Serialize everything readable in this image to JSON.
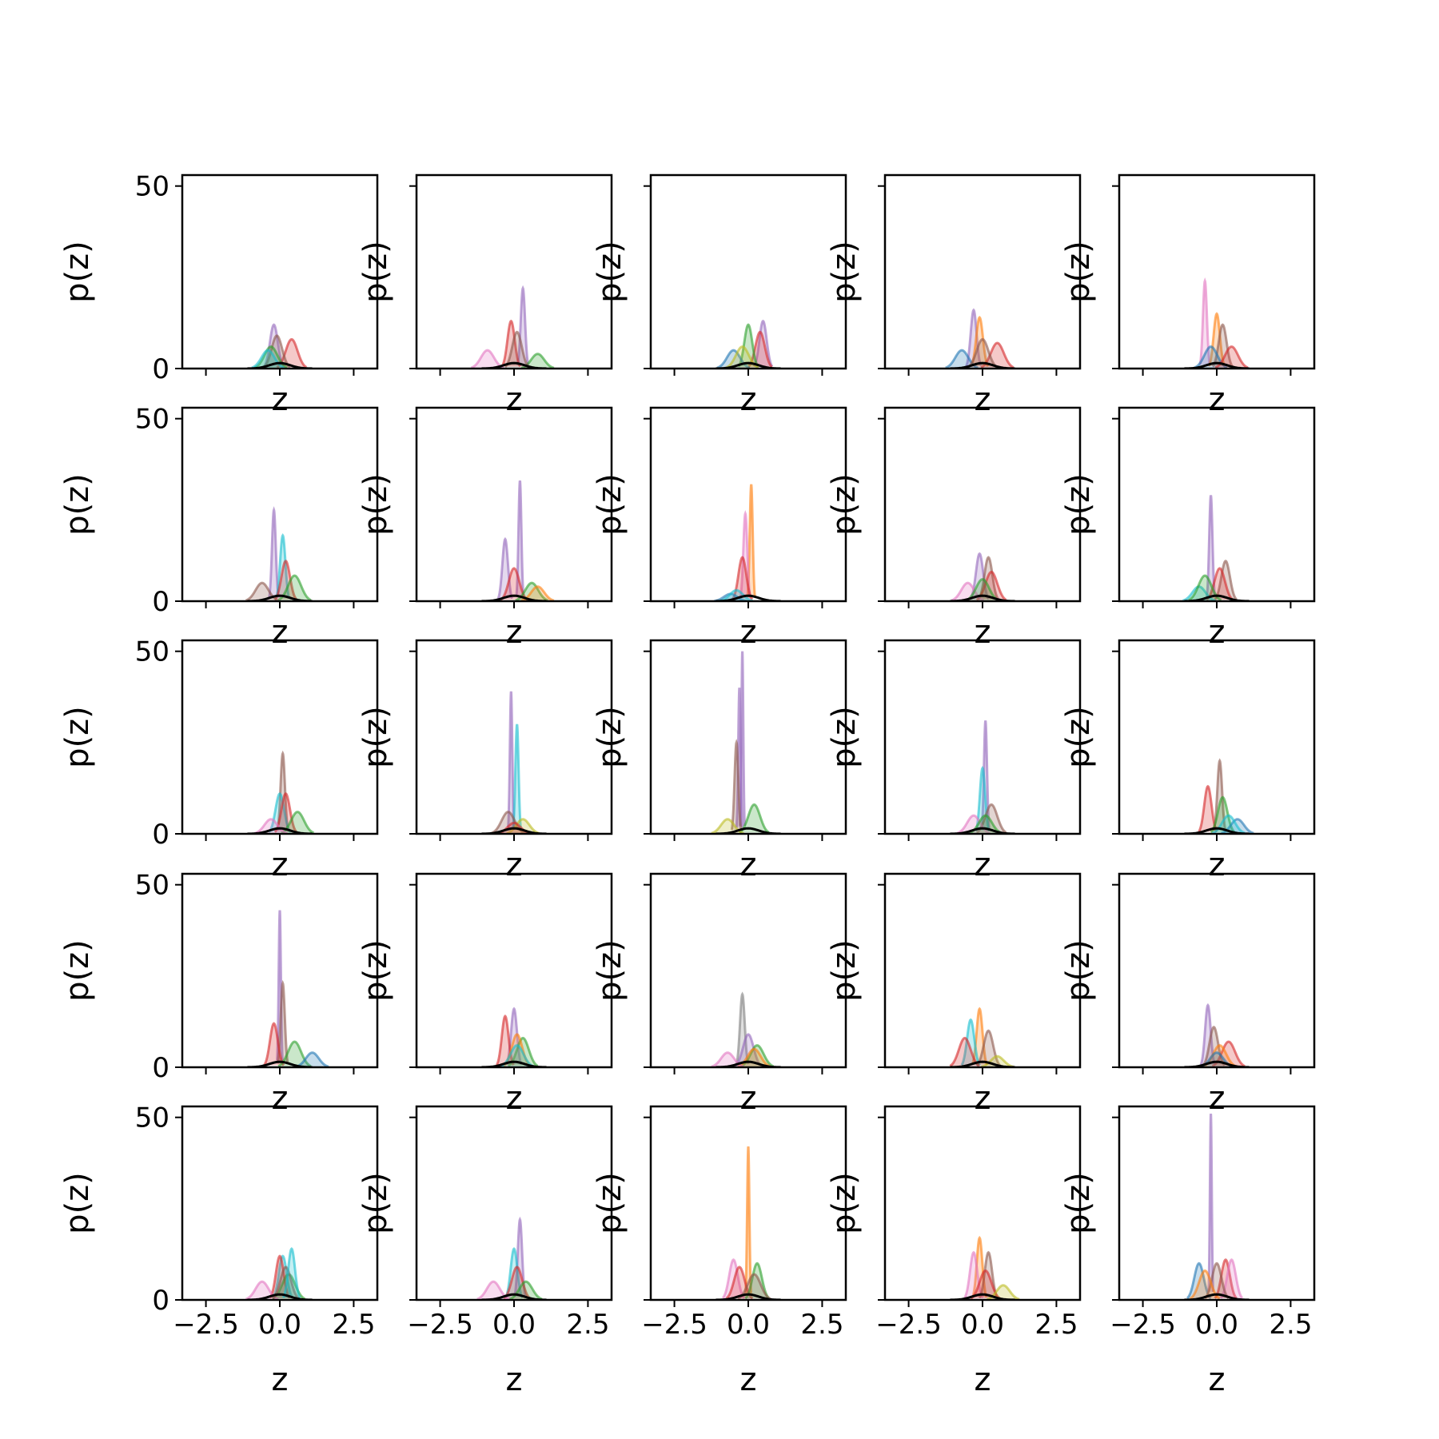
{
  "colors": [
    "#1f77b4",
    "#ff7f0e",
    "#2ca02c",
    "#d62728",
    "#9467bd",
    "#8c564b",
    "#e377c2",
    "#7f7f7f",
    "#bcbd22",
    "#17becf"
  ],
  "chart_data": {
    "type": "line",
    "layout": {
      "rows": 5,
      "cols": 5
    },
    "xlabel": "z",
    "ylabel": "p(z)",
    "xlim": [
      -3.3,
      3.3
    ],
    "ylim": [
      0,
      53
    ],
    "xticks": [
      -2.5,
      0.0,
      2.5
    ],
    "xtick_labels": [
      "−2.5",
      "0.0",
      "2.5"
    ],
    "yticks": [
      0,
      50
    ],
    "ytick_labels": [
      "0",
      "50"
    ],
    "show_xtick_labels": "bottom row only",
    "show_ytick_labels": "left column only",
    "reference_curve": {
      "color": "#000000",
      "support": [
        -1.1,
        1.1
      ],
      "peak": 1.5
    },
    "panels": [
      {
        "peaks": [
          {
            "c": 4,
            "z": -0.2,
            "h": 12
          },
          {
            "c": 3,
            "z": 0.4,
            "h": 8
          },
          {
            "c": 5,
            "z": -0.1,
            "h": 9
          },
          {
            "c": 2,
            "z": -0.3,
            "h": 6
          },
          {
            "c": 9,
            "z": -0.4,
            "h": 5
          }
        ]
      },
      {
        "peaks": [
          {
            "c": 4,
            "z": 0.3,
            "h": 22
          },
          {
            "c": 3,
            "z": -0.1,
            "h": 13
          },
          {
            "c": 6,
            "z": -0.9,
            "h": 5
          },
          {
            "c": 2,
            "z": 0.8,
            "h": 4
          },
          {
            "c": 5,
            "z": 0.1,
            "h": 10
          }
        ]
      },
      {
        "peaks": [
          {
            "c": 4,
            "z": 0.5,
            "h": 13
          },
          {
            "c": 3,
            "z": 0.4,
            "h": 10
          },
          {
            "c": 2,
            "z": 0.0,
            "h": 12
          },
          {
            "c": 0,
            "z": -0.5,
            "h": 5
          },
          {
            "c": 8,
            "z": -0.2,
            "h": 6
          }
        ]
      },
      {
        "peaks": [
          {
            "c": 4,
            "z": -0.3,
            "h": 16
          },
          {
            "c": 1,
            "z": -0.1,
            "h": 14
          },
          {
            "c": 3,
            "z": 0.5,
            "h": 7
          },
          {
            "c": 0,
            "z": -0.7,
            "h": 5
          },
          {
            "c": 5,
            "z": 0.0,
            "h": 8
          }
        ]
      },
      {
        "peaks": [
          {
            "c": 6,
            "z": -0.4,
            "h": 24
          },
          {
            "c": 1,
            "z": 0.0,
            "h": 15
          },
          {
            "c": 5,
            "z": 0.2,
            "h": 12
          },
          {
            "c": 0,
            "z": -0.2,
            "h": 6
          },
          {
            "c": 3,
            "z": 0.5,
            "h": 6
          }
        ]
      },
      {
        "peaks": [
          {
            "c": 4,
            "z": -0.2,
            "h": 25
          },
          {
            "c": 9,
            "z": 0.1,
            "h": 18
          },
          {
            "c": 3,
            "z": 0.2,
            "h": 11
          },
          {
            "c": 2,
            "z": 0.5,
            "h": 7
          },
          {
            "c": 5,
            "z": -0.6,
            "h": 5
          }
        ]
      },
      {
        "peaks": [
          {
            "c": 4,
            "z": 0.2,
            "h": 33
          },
          {
            "c": 4,
            "z": -0.3,
            "h": 17
          },
          {
            "c": 3,
            "z": 0.0,
            "h": 9
          },
          {
            "c": 2,
            "z": 0.6,
            "h": 5
          },
          {
            "c": 1,
            "z": 0.8,
            "h": 4
          }
        ]
      },
      {
        "peaks": [
          {
            "c": 1,
            "z": 0.1,
            "h": 32
          },
          {
            "c": 6,
            "z": -0.1,
            "h": 24
          },
          {
            "c": 3,
            "z": -0.2,
            "h": 12
          },
          {
            "c": 0,
            "z": -0.6,
            "h": 2
          },
          {
            "c": 9,
            "z": -0.4,
            "h": 3
          }
        ]
      },
      {
        "peaks": [
          {
            "c": 4,
            "z": -0.1,
            "h": 13
          },
          {
            "c": 5,
            "z": 0.2,
            "h": 12
          },
          {
            "c": 3,
            "z": 0.3,
            "h": 8
          },
          {
            "c": 6,
            "z": -0.5,
            "h": 5
          },
          {
            "c": 2,
            "z": 0.0,
            "h": 6
          }
        ]
      },
      {
        "peaks": [
          {
            "c": 4,
            "z": -0.2,
            "h": 29
          },
          {
            "c": 5,
            "z": 0.3,
            "h": 11
          },
          {
            "c": 3,
            "z": 0.1,
            "h": 9
          },
          {
            "c": 9,
            "z": -0.6,
            "h": 4
          },
          {
            "c": 2,
            "z": -0.4,
            "h": 7
          }
        ]
      },
      {
        "peaks": [
          {
            "c": 5,
            "z": 0.1,
            "h": 22
          },
          {
            "c": 9,
            "z": 0.0,
            "h": 11
          },
          {
            "c": 3,
            "z": 0.2,
            "h": 11
          },
          {
            "c": 2,
            "z": 0.6,
            "h": 6
          },
          {
            "c": 6,
            "z": -0.3,
            "h": 4
          }
        ]
      },
      {
        "peaks": [
          {
            "c": 4,
            "z": -0.1,
            "h": 39
          },
          {
            "c": 9,
            "z": 0.1,
            "h": 30
          },
          {
            "c": 5,
            "z": -0.2,
            "h": 6
          },
          {
            "c": 8,
            "z": 0.3,
            "h": 4
          },
          {
            "c": 3,
            "z": 0.0,
            "h": 3
          }
        ]
      },
      {
        "peaks": [
          {
            "c": 4,
            "z": -0.2,
            "h": 50
          },
          {
            "c": 4,
            "z": -0.3,
            "h": 40
          },
          {
            "c": 5,
            "z": -0.4,
            "h": 25
          },
          {
            "c": 2,
            "z": 0.2,
            "h": 8
          },
          {
            "c": 8,
            "z": -0.7,
            "h": 4
          }
        ]
      },
      {
        "peaks": [
          {
            "c": 4,
            "z": 0.1,
            "h": 31
          },
          {
            "c": 9,
            "z": 0.0,
            "h": 18
          },
          {
            "c": 5,
            "z": 0.3,
            "h": 8
          },
          {
            "c": 6,
            "z": -0.3,
            "h": 5
          },
          {
            "c": 2,
            "z": 0.1,
            "h": 5
          }
        ]
      },
      {
        "peaks": [
          {
            "c": 5,
            "z": 0.1,
            "h": 20
          },
          {
            "c": 3,
            "z": -0.3,
            "h": 13
          },
          {
            "c": 2,
            "z": 0.2,
            "h": 10
          },
          {
            "c": 0,
            "z": 0.7,
            "h": 4
          },
          {
            "c": 9,
            "z": 0.4,
            "h": 5
          }
        ]
      },
      {
        "peaks": [
          {
            "c": 4,
            "z": 0.0,
            "h": 43
          },
          {
            "c": 5,
            "z": 0.1,
            "h": 23
          },
          {
            "c": 3,
            "z": -0.2,
            "h": 12
          },
          {
            "c": 2,
            "z": 0.5,
            "h": 7
          },
          {
            "c": 0,
            "z": 1.1,
            "h": 4
          }
        ]
      },
      {
        "peaks": [
          {
            "c": 4,
            "z": 0.0,
            "h": 16
          },
          {
            "c": 3,
            "z": -0.3,
            "h": 14
          },
          {
            "c": 2,
            "z": 0.3,
            "h": 8
          },
          {
            "c": 1,
            "z": 0.1,
            "h": 9
          },
          {
            "c": 9,
            "z": 0.1,
            "h": 6
          }
        ]
      },
      {
        "peaks": [
          {
            "c": 7,
            "z": -0.2,
            "h": 20
          },
          {
            "c": 4,
            "z": 0.0,
            "h": 9
          },
          {
            "c": 2,
            "z": 0.3,
            "h": 6
          },
          {
            "c": 1,
            "z": 0.2,
            "h": 5
          },
          {
            "c": 6,
            "z": -0.7,
            "h": 4
          }
        ]
      },
      {
        "peaks": [
          {
            "c": 1,
            "z": -0.1,
            "h": 16
          },
          {
            "c": 9,
            "z": -0.4,
            "h": 13
          },
          {
            "c": 3,
            "z": -0.6,
            "h": 8
          },
          {
            "c": 5,
            "z": 0.2,
            "h": 10
          },
          {
            "c": 8,
            "z": 0.5,
            "h": 3
          }
        ]
      },
      {
        "peaks": [
          {
            "c": 4,
            "z": -0.3,
            "h": 17
          },
          {
            "c": 5,
            "z": -0.1,
            "h": 11
          },
          {
            "c": 3,
            "z": 0.4,
            "h": 7
          },
          {
            "c": 1,
            "z": 0.1,
            "h": 6
          },
          {
            "c": 0,
            "z": 0.0,
            "h": 4
          }
        ]
      },
      {
        "peaks": [
          {
            "c": 9,
            "z": 0.1,
            "h": 12
          },
          {
            "c": 3,
            "z": 0.0,
            "h": 12
          },
          {
            "c": 2,
            "z": 0.3,
            "h": 7
          },
          {
            "c": 6,
            "z": -0.6,
            "h": 5
          },
          {
            "c": 5,
            "z": 0.2,
            "h": 9
          },
          {
            "c": 9,
            "z": 0.4,
            "h": 14
          }
        ]
      },
      {
        "peaks": [
          {
            "c": 4,
            "z": 0.2,
            "h": 22
          },
          {
            "c": 9,
            "z": 0.0,
            "h": 14
          },
          {
            "c": 3,
            "z": 0.1,
            "h": 9
          },
          {
            "c": 6,
            "z": -0.7,
            "h": 5
          },
          {
            "c": 2,
            "z": 0.4,
            "h": 5
          }
        ]
      },
      {
        "peaks": [
          {
            "c": 1,
            "z": 0.0,
            "h": 42
          },
          {
            "c": 6,
            "z": -0.5,
            "h": 11
          },
          {
            "c": 3,
            "z": -0.3,
            "h": 9
          },
          {
            "c": 2,
            "z": 0.3,
            "h": 10
          },
          {
            "c": 5,
            "z": 0.2,
            "h": 7
          }
        ]
      },
      {
        "peaks": [
          {
            "c": 1,
            "z": -0.1,
            "h": 17
          },
          {
            "c": 6,
            "z": -0.3,
            "h": 13
          },
          {
            "c": 5,
            "z": 0.2,
            "h": 13
          },
          {
            "c": 3,
            "z": 0.1,
            "h": 8
          },
          {
            "c": 8,
            "z": 0.7,
            "h": 4
          }
        ]
      },
      {
        "peaks": [
          {
            "c": 4,
            "z": -0.2,
            "h": 51
          },
          {
            "c": 3,
            "z": 0.3,
            "h": 11
          },
          {
            "c": 0,
            "z": -0.6,
            "h": 10
          },
          {
            "c": 6,
            "z": 0.5,
            "h": 11
          },
          {
            "c": 5,
            "z": 0.0,
            "h": 10
          },
          {
            "c": 1,
            "z": -0.4,
            "h": 8
          }
        ]
      }
    ]
  }
}
